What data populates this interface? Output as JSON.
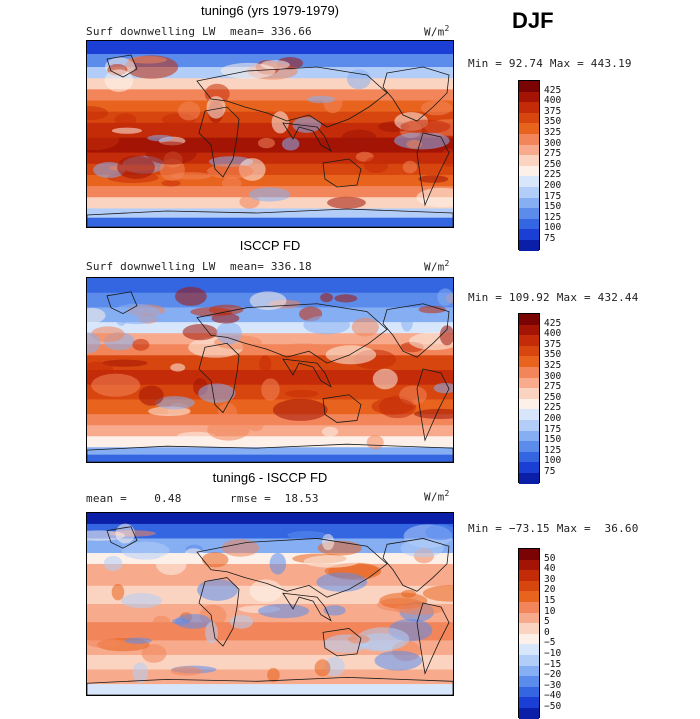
{
  "season": "DJF",
  "panels": [
    {
      "title": "tuning6 (yrs 1979-1979)",
      "left_label": "Surf downwelling LW",
      "stat1": "mean= 336.66",
      "stat2": "",
      "units": "W/m",
      "units_sup": "2",
      "range_text": "Min =  92.74 Max = 443.19",
      "colorbar": {
        "labels": [
          "425",
          "400",
          "375",
          "350",
          "325",
          "300",
          "275",
          "250",
          "225",
          "200",
          "175",
          "150",
          "125",
          "100",
          "75"
        ],
        "colors": [
          "#7a0403",
          "#a31405",
          "#c42b08",
          "#d8460f",
          "#e8631d",
          "#f2855a",
          "#f7aa8c",
          "#fbd4c1",
          "#fdf0e8",
          "#d7e6fb",
          "#b2cdf7",
          "#86aef3",
          "#5b8cec",
          "#3466e2",
          "#1b3fd4",
          "#0a1ea8"
        ]
      },
      "map": {
        "type": "model"
      }
    },
    {
      "title": "ISCCP FD",
      "left_label": "Surf downwelling LW",
      "stat1": "mean= 336.18",
      "stat2": "",
      "units": "W/m",
      "units_sup": "2",
      "range_text": "Min = 109.92 Max = 432.44",
      "colorbar": {
        "labels": [
          "425",
          "400",
          "375",
          "350",
          "325",
          "300",
          "275",
          "250",
          "225",
          "200",
          "175",
          "150",
          "125",
          "100",
          "75"
        ],
        "colors": [
          "#7a0403",
          "#a31405",
          "#c42b08",
          "#d8460f",
          "#e8631d",
          "#f2855a",
          "#f7aa8c",
          "#fbd4c1",
          "#fdf0e8",
          "#d7e6fb",
          "#b2cdf7",
          "#86aef3",
          "#5b8cec",
          "#3466e2",
          "#1b3fd4",
          "#0a1ea8"
        ]
      },
      "map": {
        "type": "obs"
      }
    },
    {
      "title": "tuning6 - ISCCP FD",
      "left_label": "mean =    0.48",
      "stat1": "rmse =  18.53",
      "stat2": "",
      "units": "W/m",
      "units_sup": "2",
      "range_text": "Min = −73.15 Max =  36.60",
      "colorbar": {
        "labels": [
          "50",
          "40",
          "30",
          "20",
          "15",
          "10",
          "5",
          "0",
          "−5",
          "−10",
          "−15",
          "−20",
          "−30",
          "−40",
          "−50"
        ],
        "colors": [
          "#7a0403",
          "#a31405",
          "#c42b08",
          "#d8460f",
          "#e8631d",
          "#f2855a",
          "#f7aa8c",
          "#fbd4c1",
          "#fdf0e8",
          "#d7e6fb",
          "#b2cdf7",
          "#86aef3",
          "#5b8cec",
          "#3466e2",
          "#1b3fd4",
          "#0a1ea8"
        ]
      },
      "map": {
        "type": "diff"
      }
    }
  ]
}
